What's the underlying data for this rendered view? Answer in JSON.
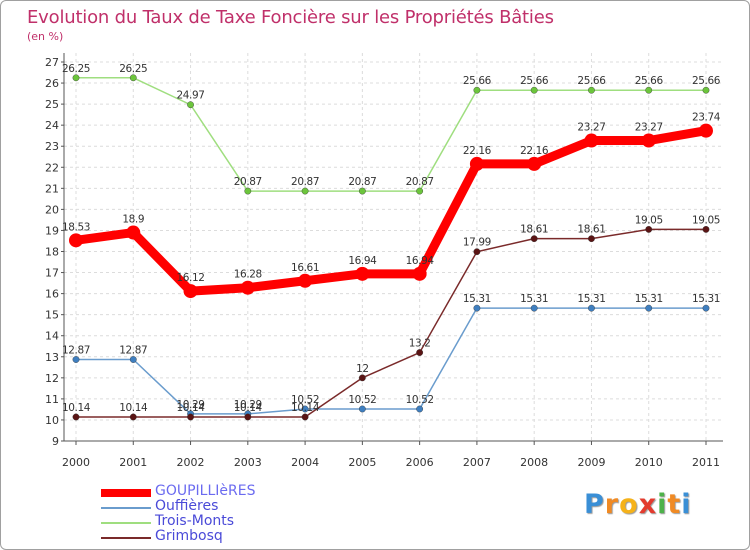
{
  "header": {
    "title": "Evolution du Taux de Taxe Foncière sur les Propriétés Bâties",
    "unit": "(en %)"
  },
  "brand": {
    "letters": [
      "P",
      "r",
      "o",
      "x",
      "i",
      "t",
      "i"
    ],
    "colors": [
      "#3a8fd6",
      "#f08a24",
      "#f5b21a",
      "#e33b2e",
      "#4db24a",
      "#f08a24",
      "#3a8fd6"
    ]
  },
  "chart_data": {
    "type": "line",
    "title": "Evolution du Taux de Taxe Foncière sur les Propriétés Bâties",
    "ylabel": "(en %)",
    "xlabel": "",
    "categories": [
      "2000",
      "2001",
      "2002",
      "2003",
      "2004",
      "2005",
      "2006",
      "2007",
      "2008",
      "2009",
      "2010",
      "2011"
    ],
    "ylim": [
      9,
      27
    ],
    "yticks": [
      "9",
      "10",
      "11",
      "12",
      "13",
      "14",
      "15",
      "16",
      "17",
      "18",
      "19",
      "20",
      "21",
      "22",
      "23",
      "24",
      "25",
      "26",
      "27"
    ],
    "grid": true,
    "legend_position": "bottom-left",
    "series": [
      {
        "name": "GOUPILLIèRES",
        "color": "#ff0000",
        "marker_color": "#ff0000",
        "emphasis": true,
        "values": [
          18.53,
          18.9,
          16.12,
          16.28,
          16.61,
          16.94,
          16.94,
          22.16,
          22.16,
          23.27,
          23.27,
          23.74
        ],
        "labels": [
          "18.53",
          "18.9",
          "16.12",
          "16.28",
          "16.61",
          "16.94",
          "16.94",
          "22.16",
          "22.16",
          "23.27",
          "23.27",
          "23.74"
        ]
      },
      {
        "name": "Ouffières",
        "color": "#6a9ccd",
        "marker_color": "#3f7fc0",
        "emphasis": false,
        "values": [
          12.87,
          12.87,
          10.29,
          10.29,
          10.52,
          10.52,
          10.52,
          15.31,
          15.31,
          15.31,
          15.31,
          15.31
        ],
        "labels": [
          "12.87",
          "12.87",
          "10.29",
          "10.29",
          "10.52",
          "10.52",
          "10.52",
          "15.31",
          "15.31",
          "15.31",
          "15.31",
          "15.31"
        ]
      },
      {
        "name": "Trois-Monts",
        "color": "#9fde7f",
        "marker_color": "#6cc53c",
        "emphasis": false,
        "values": [
          26.25,
          26.25,
          24.97,
          20.87,
          20.87,
          20.87,
          20.87,
          25.66,
          25.66,
          25.66,
          25.66,
          25.66
        ],
        "labels": [
          "26.25",
          "26.25",
          "24.97",
          "20.87",
          "20.87",
          "20.87",
          "20.87",
          "25.66",
          "25.66",
          "25.66",
          "25.66",
          "25.66"
        ]
      },
      {
        "name": "Grimbosq",
        "color": "#7a2a2a",
        "marker_color": "#5a1414",
        "emphasis": false,
        "values": [
          10.14,
          10.14,
          10.14,
          10.14,
          10.14,
          12.0,
          13.2,
          17.99,
          18.61,
          18.61,
          19.05,
          19.05
        ],
        "labels": [
          "10.14",
          "10.14",
          "10.14",
          "10.14",
          "10.14",
          "12",
          "13.2",
          "17.99",
          "18.61",
          "18.61",
          "19.05",
          "19.05"
        ]
      }
    ]
  }
}
